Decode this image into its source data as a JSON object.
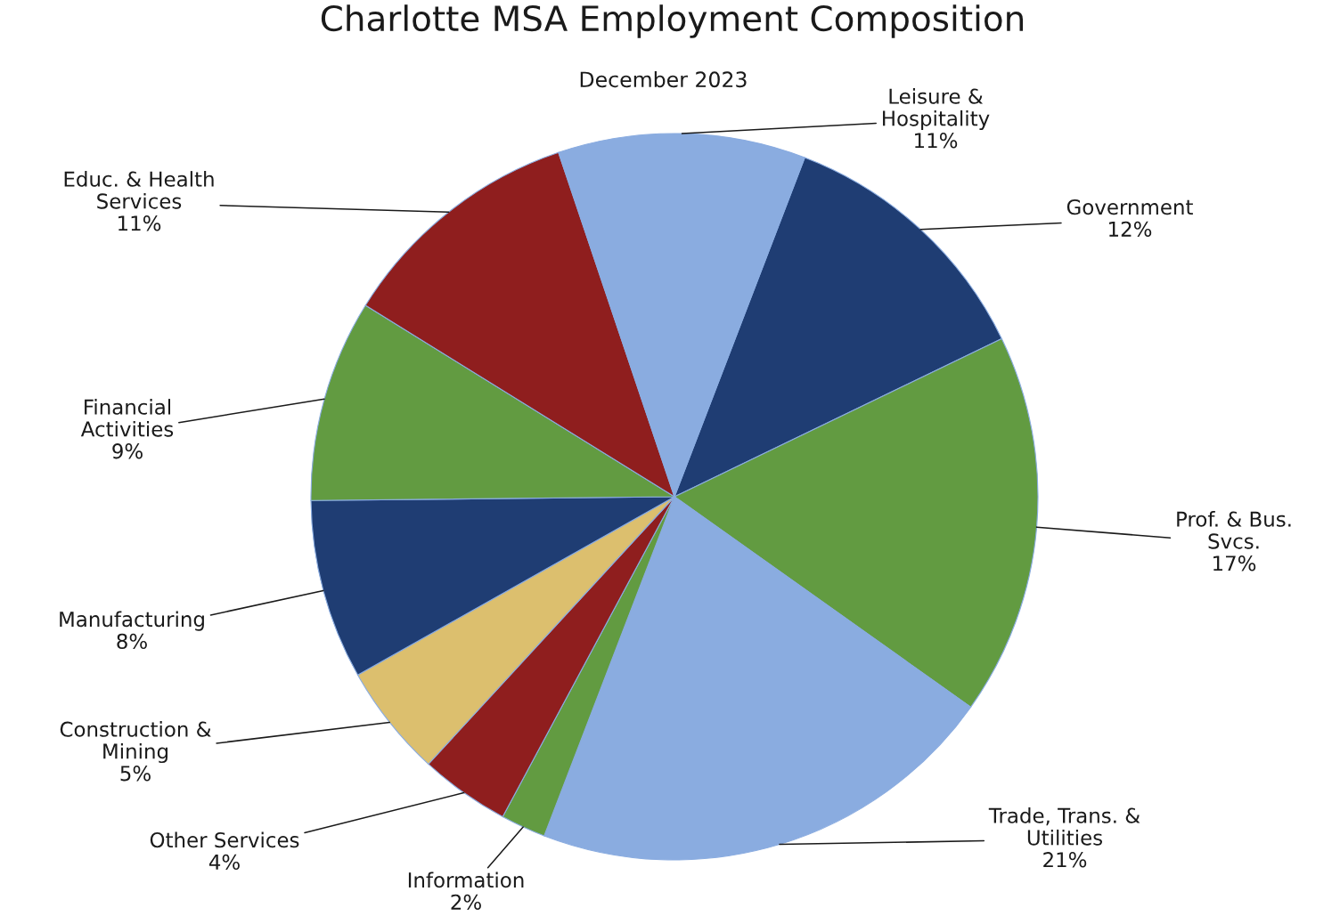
{
  "chart_data": {
    "type": "pie",
    "title": "Charlotte MSA Employment Composition",
    "subtitle": "December 2023",
    "categories": [
      "Government",
      "Prof. & Bus.\nSvcs.",
      "Trade, Trans. &\nUtilities",
      "Information",
      "Other Services",
      "Construction &\nMining",
      "Manufacturing",
      "Financial\nActivities",
      "Educ. & Health\nServices",
      "Leisure &\nHospitality"
    ],
    "values": [
      12,
      17,
      21,
      2,
      4,
      5,
      8,
      9,
      11,
      11
    ],
    "value_labels": [
      "12%",
      "17%",
      "21%",
      "2%",
      "4%",
      "5%",
      "8%",
      "9%",
      "11%",
      "11%"
    ],
    "colors": [
      "#1f3d73",
      "#629b41",
      "#8aace0",
      "#629b41",
      "#8f1e1e",
      "#dcbf6e",
      "#1f3d73",
      "#629b41",
      "#8f1e1e",
      "#8aace0"
    ],
    "legend": false
  }
}
